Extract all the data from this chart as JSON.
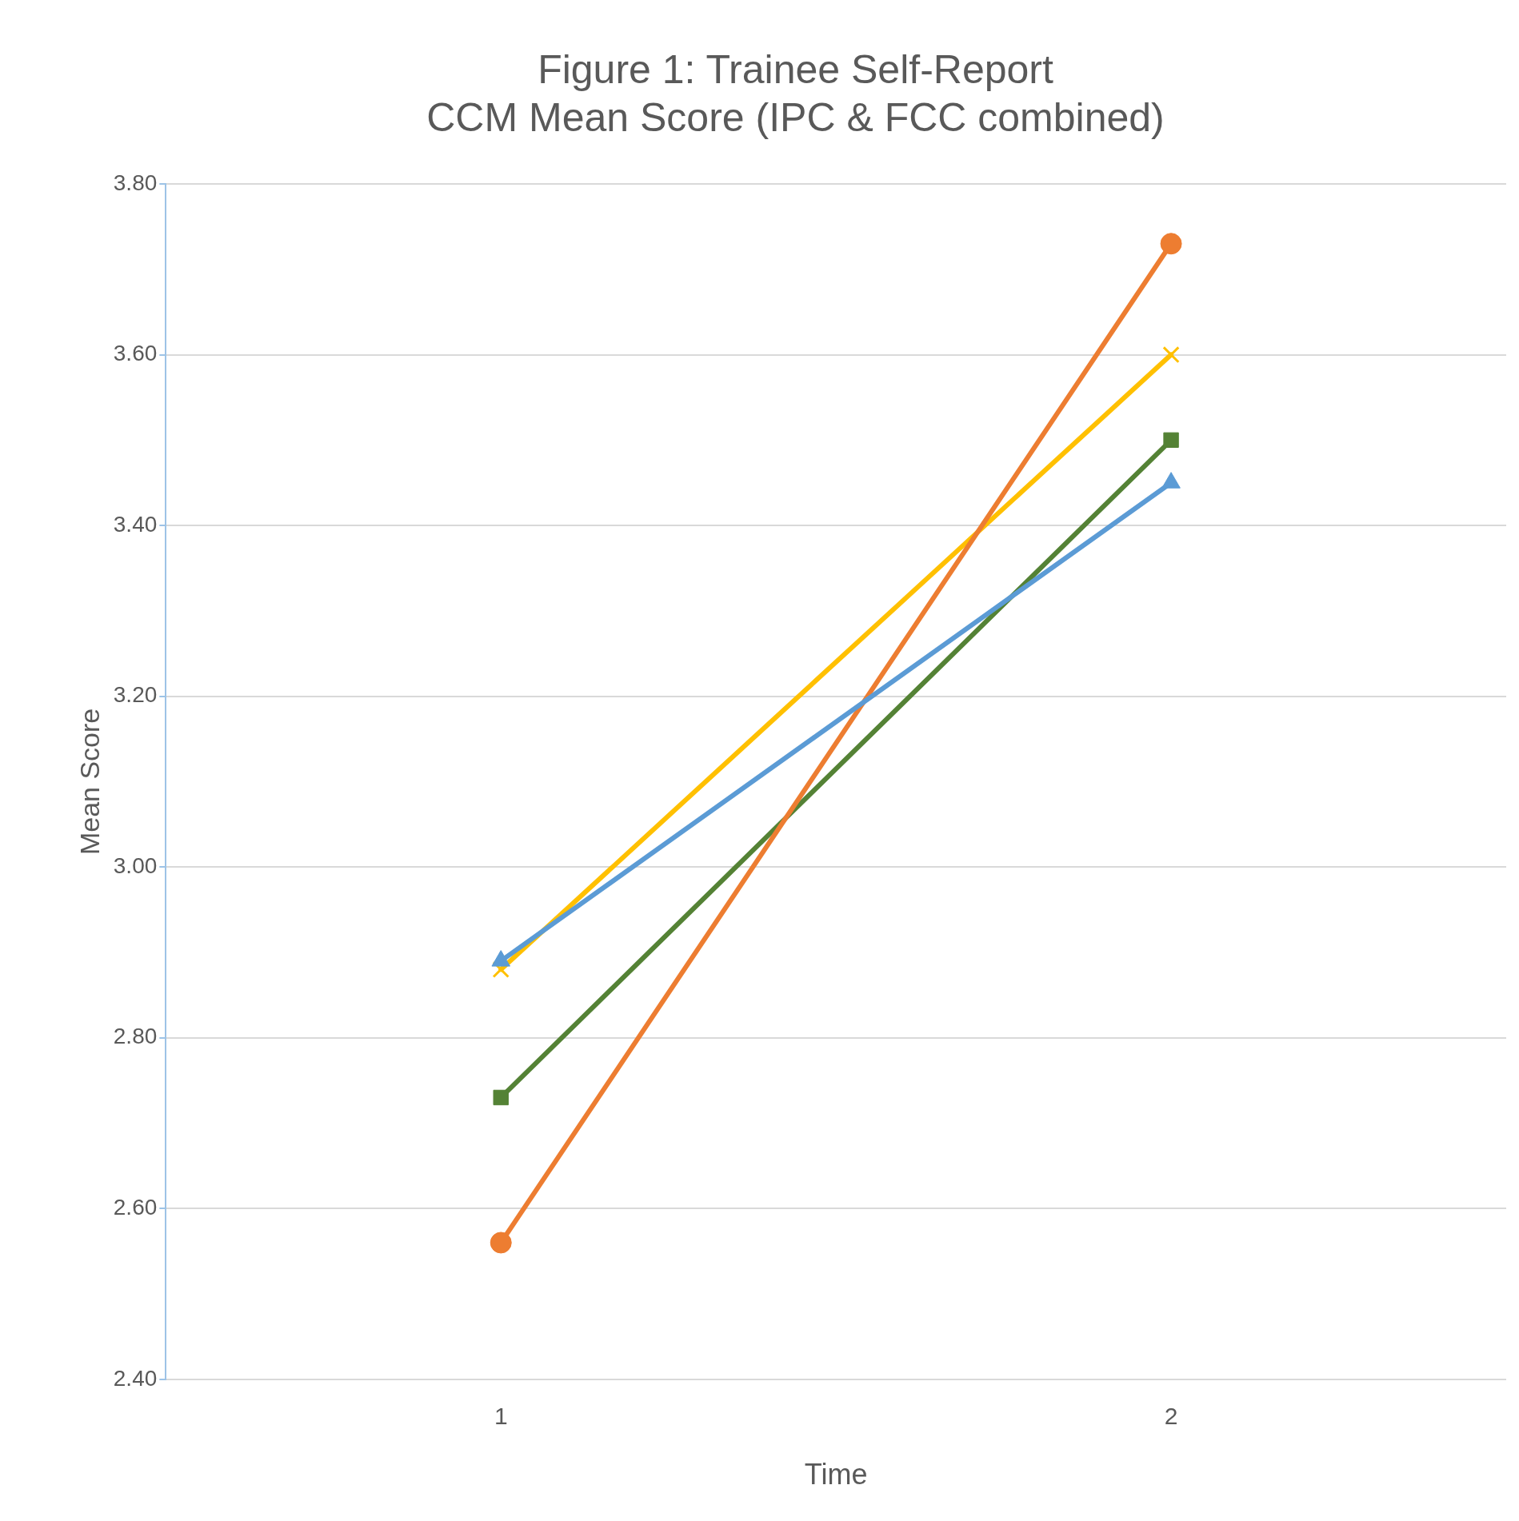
{
  "chart_data": {
    "type": "line",
    "title": "Figure 1: Trainee Self-Report\nCCM Mean Score (IPC & FCC combined)",
    "xlabel": "Time",
    "ylabel": "Mean Score",
    "categories": [
      "1",
      "2"
    ],
    "series": [
      {
        "color": "#5b9bd5",
        "marker": "triangle",
        "values": [
          2.89,
          3.45
        ]
      },
      {
        "color": "#ed7d31",
        "marker": "circle",
        "values": [
          2.56,
          3.73
        ]
      },
      {
        "color": "#ffc000",
        "marker": "cross",
        "values": [
          2.88,
          3.6
        ]
      },
      {
        "color": "#548235",
        "marker": "square",
        "values": [
          2.73,
          3.5
        ]
      }
    ],
    "ylim": [
      2.4,
      3.8
    ],
    "yticks": [
      {
        "value": 2.4,
        "label": "2.40"
      },
      {
        "value": 2.6,
        "label": "2.60"
      },
      {
        "value": 2.8,
        "label": "2.80"
      },
      {
        "value": 3.0,
        "label": "3.00"
      },
      {
        "value": 3.2,
        "label": "3.20"
      },
      {
        "value": 3.4,
        "label": "3.40"
      },
      {
        "value": 3.6,
        "label": "3.60"
      },
      {
        "value": 3.8,
        "label": "3.80"
      }
    ],
    "grid": "y",
    "legend": false,
    "line_style": "solid"
  }
}
